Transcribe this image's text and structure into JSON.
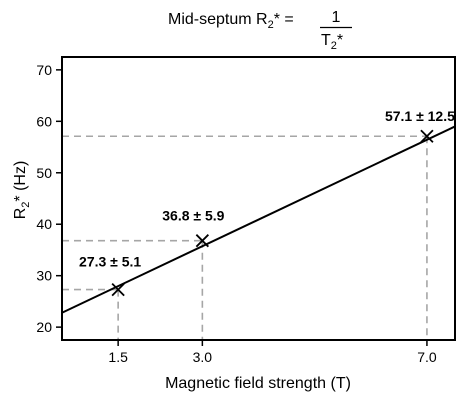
{
  "chart_data": {
    "type": "scatter",
    "title": {
      "prefix": "Mid-septum R",
      "prefix_sub": "2",
      "prefix_sup": "*",
      "equals": " =",
      "numerator": "1",
      "denominator": "T",
      "denominator_sub": "2",
      "denominator_sup": "*"
    },
    "xlabel": "Magnetic field strength (T)",
    "ylabel": {
      "main": "R",
      "sub": "2",
      "sup": "*",
      "unit": " (Hz)"
    },
    "xlim": [
      0.5,
      7.5
    ],
    "ylim": [
      17.5,
      72.5
    ],
    "x_ticks": [
      1.5,
      3.0,
      7.0
    ],
    "x_tick_labels": [
      "1.5",
      "3.0",
      "7.0"
    ],
    "y_ticks": [
      20,
      30,
      40,
      50,
      60,
      70
    ],
    "y_tick_labels": [
      "20",
      "30",
      "40",
      "50",
      "60",
      "70"
    ],
    "points": [
      {
        "x": 1.5,
        "y": 27.3,
        "label": "27.3 ± 5.1"
      },
      {
        "x": 3.0,
        "y": 36.8,
        "label": "36.8 ± 5.9"
      },
      {
        "x": 7.0,
        "y": 57.1,
        "label": "57.1 ± 12.5"
      }
    ],
    "fit_line": {
      "x": [
        0.5,
        7.5
      ],
      "y": [
        22.8,
        59.0
      ]
    },
    "grid": false,
    "legend": "none",
    "colors": {
      "line": "#000000",
      "marker": "#000000",
      "guide": "#a6a6a6"
    }
  }
}
